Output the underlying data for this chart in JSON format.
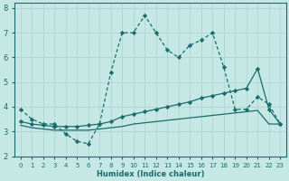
{
  "xlabel": "Humidex (Indice chaleur)",
  "xlim": [
    -0.5,
    23.5
  ],
  "ylim": [
    2,
    8.2
  ],
  "yticks": [
    2,
    3,
    4,
    5,
    6,
    7,
    8
  ],
  "xticks": [
    0,
    1,
    2,
    3,
    4,
    5,
    6,
    7,
    8,
    9,
    10,
    11,
    12,
    13,
    14,
    15,
    16,
    17,
    18,
    19,
    20,
    21,
    22,
    23
  ],
  "bg_color": "#c5e8e5",
  "grid_color": "#b0d8d5",
  "line_color": "#1a6b6b",
  "line1_x": [
    0,
    1,
    2,
    3,
    4,
    5,
    6,
    7,
    8,
    9,
    10,
    11,
    12,
    13,
    14,
    15,
    16,
    17,
    18,
    19,
    20,
    21,
    22,
    23
  ],
  "line1_y": [
    3.9,
    3.5,
    3.3,
    3.3,
    2.9,
    2.6,
    2.5,
    3.3,
    5.4,
    7.0,
    7.0,
    7.7,
    7.0,
    6.3,
    6.0,
    6.5,
    6.7,
    7.0,
    5.6,
    3.9,
    3.9,
    4.4,
    4.1,
    3.3
  ],
  "line2_x": [
    0,
    1,
    2,
    3,
    4,
    5,
    6,
    7,
    8,
    9,
    10,
    11,
    12,
    13,
    14,
    15,
    16,
    17,
    18,
    19,
    20,
    21,
    22,
    23
  ],
  "line2_y": [
    3.4,
    3.3,
    3.25,
    3.2,
    3.2,
    3.2,
    3.25,
    3.3,
    3.4,
    3.6,
    3.7,
    3.8,
    3.9,
    4.0,
    4.1,
    4.2,
    4.35,
    4.45,
    4.55,
    4.65,
    4.75,
    5.55,
    3.9,
    3.3
  ],
  "line3_x": [
    0,
    1,
    2,
    3,
    4,
    5,
    6,
    7,
    8,
    9,
    10,
    11,
    12,
    13,
    14,
    15,
    16,
    17,
    18,
    19,
    20,
    21,
    22,
    23
  ],
  "line3_y": [
    3.25,
    3.15,
    3.1,
    3.05,
    3.05,
    3.05,
    3.05,
    3.1,
    3.15,
    3.2,
    3.3,
    3.35,
    3.4,
    3.45,
    3.5,
    3.55,
    3.6,
    3.65,
    3.7,
    3.75,
    3.8,
    3.85,
    3.3,
    3.3
  ]
}
